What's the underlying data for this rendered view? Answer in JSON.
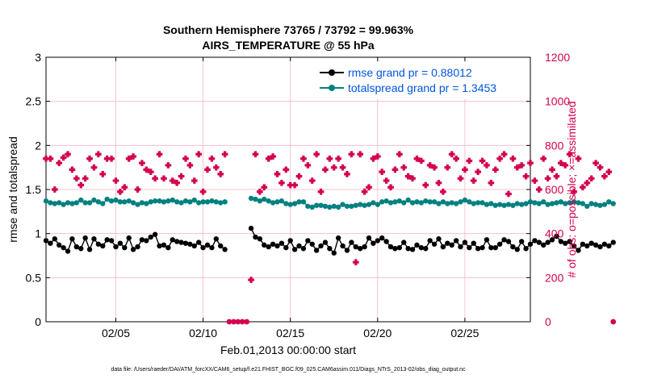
{
  "chart_data": {
    "type": "line",
    "title_line1": "Southern Hemisphere 73765 / 73792 = 99.963%",
    "title_line2": "AIRS_TEMPERATURE @ 55 hPa",
    "xlabel": "Feb.01,2013 00:00:00 start",
    "ylabel_left": "rmse and totalspread",
    "ylabel_right": "# of obs: o=possible; ×=assimilated",
    "xlim": [
      1,
      28.75
    ],
    "ylim_left": [
      0,
      3
    ],
    "ylim_right": [
      0,
      1200
    ],
    "x_ticks": [
      5,
      10,
      15,
      20,
      25
    ],
    "x_tick_labels": [
      "02/05",
      "02/10",
      "02/15",
      "02/20",
      "02/25"
    ],
    "y_left_ticks": [
      0,
      0.5,
      1,
      1.5,
      2,
      2.5,
      3
    ],
    "y_left_tick_labels": [
      "0",
      "0.5",
      "1",
      "1.5",
      "2",
      "2.5",
      "3"
    ],
    "y_right_ticks": [
      0,
      200,
      400,
      600,
      800,
      1000,
      1200
    ],
    "y_right_tick_labels": [
      "0",
      "200",
      "400",
      "600",
      "800",
      "1000",
      "1200"
    ],
    "colors": {
      "rmse": "#000000",
      "spread": "#008080",
      "obs": "#d4004f",
      "legend_text": "#0055e0",
      "grid": "#f4b6c2"
    },
    "x_start": 1.0,
    "x_step": 0.25,
    "series": [
      {
        "name": "rmse grand pr = 0.88012",
        "values": [
          0.92,
          0.89,
          0.94,
          0.87,
          0.84,
          0.8,
          0.94,
          0.85,
          0.83,
          0.95,
          0.82,
          0.94,
          0.88,
          0.86,
          0.93,
          0.92,
          0.85,
          0.89,
          0.84,
          0.95,
          0.82,
          0.85,
          0.93,
          0.92,
          0.96,
          0.99,
          0.86,
          0.87,
          0.84,
          0.93,
          0.91,
          0.9,
          0.89,
          0.88,
          0.86,
          0.9,
          0.84,
          0.87,
          0.84,
          0.94,
          0.86,
          0.82,
          null,
          null,
          null,
          null,
          null,
          1.06,
          0.96,
          0.94,
          0.87,
          0.85,
          0.88,
          0.86,
          0.89,
          0.84,
          0.92,
          0.82,
          0.86,
          0.83,
          0.92,
          0.88,
          0.81,
          0.86,
          0.9,
          0.83,
          0.78,
          0.95,
          0.86,
          0.81,
          0.9,
          0.85,
          0.83,
          0.85,
          0.95,
          0.89,
          0.92,
          0.95,
          0.91,
          0.85,
          0.83,
          0.84,
          0.9,
          0.83,
          0.82,
          0.87,
          0.84,
          0.83,
          0.92,
          0.88,
          0.94,
          0.85,
          0.89,
          0.87,
          0.92,
          0.85,
          0.9,
          0.84,
          0.89,
          0.83,
          0.84,
          0.93,
          0.84,
          0.84,
          0.88,
          0.93,
          0.91,
          0.85,
          0.82,
          0.91,
          0.83,
          0.88,
          0.92,
          0.9,
          0.87,
          0.9,
          0.93,
          0.97,
          0.91,
          0.89,
          0.91,
          0.86,
          0.81,
          0.88,
          0.86,
          0.89,
          0.87,
          0.85,
          0.88,
          0.86,
          0.9
        ]
      },
      {
        "name": "totalspread grand pr = 1.3453",
        "values": [
          1.37,
          1.35,
          1.34,
          1.35,
          1.33,
          1.35,
          1.34,
          1.35,
          1.38,
          1.35,
          1.35,
          1.38,
          1.36,
          1.34,
          1.39,
          1.37,
          1.38,
          1.36,
          1.36,
          1.37,
          1.35,
          1.33,
          1.35,
          1.34,
          1.36,
          1.37,
          1.37,
          1.36,
          1.37,
          1.38,
          1.36,
          1.35,
          1.37,
          1.36,
          1.38,
          1.35,
          1.36,
          1.36,
          1.37,
          1.36,
          1.35,
          1.36,
          null,
          null,
          null,
          null,
          null,
          1.4,
          1.39,
          1.37,
          1.39,
          1.37,
          1.35,
          1.36,
          1.37,
          1.34,
          1.33,
          1.34,
          1.36,
          1.36,
          1.31,
          1.3,
          1.32,
          1.32,
          1.31,
          1.3,
          1.31,
          1.3,
          1.33,
          1.31,
          1.31,
          1.32,
          1.33,
          1.32,
          1.33,
          1.35,
          1.33,
          1.36,
          1.37,
          1.35,
          1.36,
          1.37,
          1.35,
          1.38,
          1.35,
          1.36,
          1.35,
          1.37,
          1.36,
          1.36,
          1.34,
          1.36,
          1.34,
          1.35,
          1.34,
          1.36,
          1.38,
          1.36,
          1.34,
          1.35,
          1.35,
          1.33,
          1.34,
          1.32,
          1.33,
          1.32,
          1.33,
          1.32,
          1.34,
          1.33,
          1.34,
          1.36,
          1.35,
          1.34,
          1.36,
          1.33,
          1.34,
          1.35,
          1.36,
          1.34,
          1.35,
          1.36,
          1.35,
          1.34,
          1.31,
          1.34,
          1.33,
          1.32,
          1.33,
          1.36,
          1.34
        ]
      },
      {
        "name": "# of obs assimilated",
        "axis": "right",
        "values": [
          740,
          740,
          600,
          720,
          745,
          760,
          690,
          650,
          620,
          650,
          740,
          700,
          760,
          670,
          740,
          740,
          640,
          590,
          610,
          740,
          750,
          600,
          720,
          690,
          680,
          650,
          760,
          650,
          710,
          640,
          630,
          660,
          740,
          710,
          640,
          760,
          590,
          690,
          740,
          700,
          670,
          760,
          0,
          0,
          0,
          0,
          0,
          190,
          760,
          590,
          610,
          740,
          750,
          670,
          630,
          690,
          620,
          620,
          660,
          740,
          710,
          640,
          760,
          590,
          690,
          740,
          700,
          740,
          700,
          670,
          760,
          270,
          760,
          590,
          610,
          740,
          750,
          680,
          640,
          610,
          690,
          760,
          700,
          660,
          650,
          740,
          730,
          620,
          710,
          700,
          630,
          590,
          700,
          760,
          740,
          650,
          690,
          730,
          640,
          680,
          730,
          710,
          630,
          690,
          740,
          760,
          580,
          740,
          700,
          710,
          660,
          720,
          640,
          600,
          740,
          650,
          690,
          660,
          720,
          710,
          760,
          590,
          740,
          610,
          630,
          650,
          720,
          700,
          660,
          680,
          0
        ]
      }
    ],
    "legend": [
      "rmse grand pr = 0.88012",
      "totalspread grand pr = 1.3453"
    ],
    "legend_position": "top-right"
  },
  "footer": "data file: /Users/raeder/DAI/ATM_forcXX/CAM6_setup/f.e21.FHIST_BGC.f09_025.CAM6assim.011/Diags_NTrS_2013-02/obs_diag_output.nc"
}
